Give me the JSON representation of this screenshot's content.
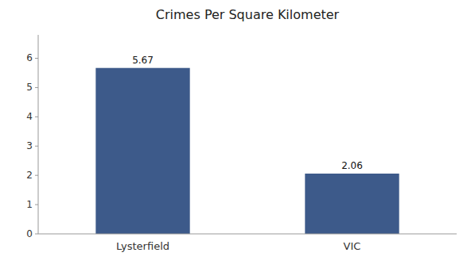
{
  "chart_data": {
    "type": "bar",
    "title": "Crimes Per Square Kilometer",
    "categories": [
      "Lysterfield",
      "VIC"
    ],
    "values": [
      5.67,
      2.06
    ],
    "color": "#3d5a8a",
    "ylim": [
      0,
      6.8
    ],
    "yticks": [
      0,
      1,
      2,
      3,
      4,
      5,
      6
    ],
    "grid": false,
    "data_labels": true
  }
}
